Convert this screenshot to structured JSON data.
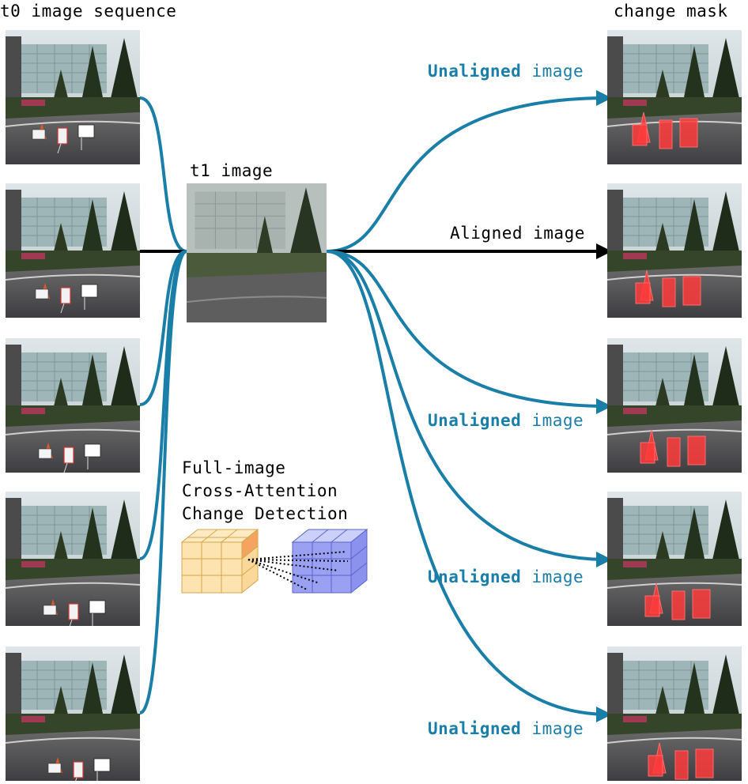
{
  "headers": {
    "left": "t0 image sequence",
    "right": "change mask",
    "center": "t1 image"
  },
  "arrows": [
    {
      "bold": "Unaligned",
      "rest": " image",
      "aligned": false
    },
    {
      "bold": "",
      "rest": "Aligned image",
      "aligned": true
    },
    {
      "bold": "Unaligned",
      "rest": " image",
      "aligned": false
    },
    {
      "bold": "Unaligned",
      "rest": " image",
      "aligned": false
    },
    {
      "bold": "Unaligned",
      "rest": " image",
      "aligned": false
    }
  ],
  "method": {
    "line1": "Full-image",
    "line2": "Cross-Attention",
    "line3": "Change Detection"
  },
  "colors": {
    "blue": "#1a7fa8",
    "black": "#000000",
    "orange_cube": "#fde3b0",
    "purple_cube": "#8e96ef",
    "mask_red": "#ff3b3b"
  },
  "sequence_count": 5
}
